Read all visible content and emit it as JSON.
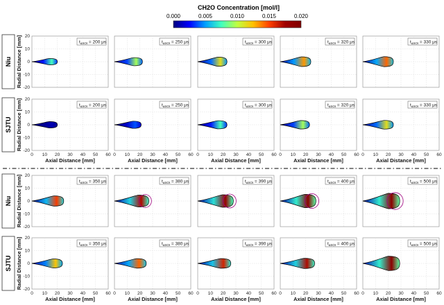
{
  "figure": {
    "colorbar": {
      "title": "CH2O Concentration [mol/l]",
      "ticks": [
        "0.000",
        "0.005",
        "0.010",
        "0.015",
        "0.020"
      ],
      "range": [
        0,
        0.02
      ],
      "colormap": [
        "#00007f",
        "#0000ff",
        "#00a0ff",
        "#40ffbf",
        "#c0ff40",
        "#ffc000",
        "#ff4000",
        "#a00000",
        "#7f0000"
      ]
    },
    "x_label": "Axial Distance [mm]",
    "y_label": "Radial Distance [mm]",
    "row_labels": [
      "Niu",
      "SJTU",
      "Niu",
      "SJTU"
    ],
    "annotation_prefix": "t",
    "annotation_subscript": "aSOI",
    "annotation_unit": "μs",
    "time_groups": [
      [
        "200",
        "250",
        "300",
        "320",
        "330"
      ],
      [
        "350",
        "380",
        "390",
        "400",
        "500"
      ]
    ]
  },
  "chart_data": {
    "type": "heatmap",
    "x_axis": {
      "label": "Axial Distance [mm]",
      "range": [
        0,
        60
      ],
      "ticks": [
        0,
        10,
        20,
        30,
        40,
        50,
        60
      ]
    },
    "y_axis": {
      "label": "Radial Distance [mm]",
      "range": [
        -20,
        20
      ],
      "ticks": [
        20,
        10,
        0,
        -10,
        -20
      ]
    },
    "grid": true,
    "panels": [
      {
        "model": "Niu",
        "t_us": 200,
        "tip_mm": 20,
        "half_width_mm": 2.5,
        "peak_ch2o": 0.008
      },
      {
        "model": "Niu",
        "t_us": 250,
        "tip_mm": 22,
        "half_width_mm": 3.2,
        "peak_ch2o": 0.01
      },
      {
        "model": "Niu",
        "t_us": 300,
        "tip_mm": 23,
        "half_width_mm": 3.6,
        "peak_ch2o": 0.012
      },
      {
        "model": "Niu",
        "t_us": 320,
        "tip_mm": 24,
        "half_width_mm": 3.8,
        "peak_ch2o": 0.014
      },
      {
        "model": "Niu",
        "t_us": 330,
        "tip_mm": 24,
        "half_width_mm": 3.9,
        "peak_ch2o": 0.015
      },
      {
        "model": "SJTU",
        "t_us": 200,
        "tip_mm": 20,
        "half_width_mm": 2.5,
        "peak_ch2o": 0.001
      },
      {
        "model": "SJTU",
        "t_us": 250,
        "tip_mm": 21,
        "half_width_mm": 2.8,
        "peak_ch2o": 0.004
      },
      {
        "model": "SJTU",
        "t_us": 300,
        "tip_mm": 23,
        "half_width_mm": 3.2,
        "peak_ch2o": 0.008
      },
      {
        "model": "SJTU",
        "t_us": 320,
        "tip_mm": 23,
        "half_width_mm": 3.3,
        "peak_ch2o": 0.01
      },
      {
        "model": "SJTU",
        "t_us": 330,
        "tip_mm": 24,
        "half_width_mm": 3.4,
        "peak_ch2o": 0.012
      },
      {
        "model": "Niu",
        "t_us": 350,
        "tip_mm": 25,
        "half_width_mm": 4.0,
        "peak_ch2o": 0.016
      },
      {
        "model": "Niu",
        "t_us": 380,
        "tip_mm": 27,
        "half_width_mm": 4.6,
        "peak_ch2o": 0.018
      },
      {
        "model": "Niu",
        "t_us": 390,
        "tip_mm": 28,
        "half_width_mm": 4.9,
        "peak_ch2o": 0.019
      },
      {
        "model": "Niu",
        "t_us": 400,
        "tip_mm": 28,
        "half_width_mm": 5.2,
        "peak_ch2o": 0.02
      },
      {
        "model": "Niu",
        "t_us": 500,
        "tip_mm": 29,
        "half_width_mm": 6.0,
        "peak_ch2o": 0.02
      },
      {
        "model": "SJTU",
        "t_us": 350,
        "tip_mm": 24,
        "half_width_mm": 3.5,
        "peak_ch2o": 0.013
      },
      {
        "model": "SJTU",
        "t_us": 380,
        "tip_mm": 25,
        "half_width_mm": 3.7,
        "peak_ch2o": 0.015
      },
      {
        "model": "SJTU",
        "t_us": 390,
        "tip_mm": 26,
        "half_width_mm": 3.8,
        "peak_ch2o": 0.017
      },
      {
        "model": "SJTU",
        "t_us": 400,
        "tip_mm": 27,
        "half_width_mm": 4.0,
        "peak_ch2o": 0.018
      },
      {
        "model": "SJTU",
        "t_us": 500,
        "tip_mm": 29,
        "half_width_mm": 5.6,
        "peak_ch2o": 0.02
      }
    ]
  }
}
